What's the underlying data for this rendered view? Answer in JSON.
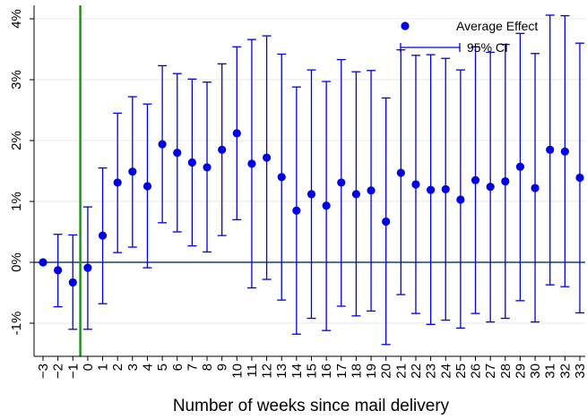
{
  "chart_data": {
    "type": "scatter",
    "title": "",
    "xlabel": "Number of weeks since mail delivery",
    "ylabel": "",
    "x": [
      -3,
      -2,
      -1,
      0,
      1,
      2,
      3,
      4,
      5,
      6,
      7,
      8,
      9,
      10,
      11,
      12,
      13,
      14,
      15,
      16,
      17,
      18,
      19,
      20,
      21,
      22,
      23,
      24,
      25,
      26,
      27,
      28,
      29,
      30,
      31,
      32,
      33
    ],
    "xlim": [
      -3,
      33
    ],
    "ylim": [
      -1.6,
      4.2
    ],
    "ytick_values": [
      -1,
      0,
      1,
      2,
      3,
      4
    ],
    "ytick_labels": [
      "-1%",
      "0%",
      "1%",
      "2%",
      "3%",
      "4%"
    ],
    "grid": true,
    "reference_lines": {
      "horizontal_y": 0,
      "vertical_x": -0.5,
      "horizontal_color": "#1c3f6e",
      "vertical_color": "#1e8c1e"
    },
    "marker_color": "#0000e6",
    "legend": {
      "placement": "top-right",
      "entries": [
        "Average Effect",
        "95% CI"
      ]
    },
    "series": [
      {
        "name": "Average Effect",
        "values": [
          0.0,
          -0.13,
          -0.33,
          -0.09,
          0.44,
          1.31,
          1.49,
          1.25,
          1.94,
          1.8,
          1.64,
          1.56,
          1.85,
          2.12,
          1.62,
          1.72,
          1.4,
          0.85,
          1.12,
          0.93,
          1.31,
          1.12,
          1.18,
          0.67,
          1.47,
          1.28,
          1.19,
          1.2,
          1.03,
          1.35,
          1.24,
          1.33,
          1.57,
          1.22,
          1.85,
          1.82,
          1.39
        ]
      },
      {
        "name": "95% CI",
        "lower": [
          0.0,
          -0.73,
          -1.1,
          -1.1,
          -0.68,
          0.16,
          0.25,
          -0.09,
          0.65,
          0.5,
          0.27,
          0.17,
          0.44,
          0.7,
          -0.42,
          -0.28,
          -0.62,
          -1.18,
          -0.92,
          -1.12,
          -0.72,
          -0.88,
          -0.8,
          -1.35,
          -0.53,
          -0.84,
          -1.02,
          -0.95,
          -1.08,
          -0.84,
          -0.98,
          -0.92,
          -0.63,
          -0.98,
          -0.37,
          -0.4,
          -0.83
        ],
        "upper": [
          0.0,
          0.46,
          0.45,
          0.91,
          1.55,
          2.45,
          2.72,
          2.6,
          3.23,
          3.1,
          3.01,
          2.96,
          3.26,
          3.54,
          3.66,
          3.72,
          3.42,
          2.88,
          3.16,
          2.97,
          3.33,
          3.13,
          3.15,
          2.7,
          3.49,
          3.4,
          3.41,
          3.35,
          3.16,
          3.54,
          3.45,
          3.58,
          3.76,
          3.43,
          4.06,
          4.05,
          3.6
        ]
      }
    ]
  }
}
